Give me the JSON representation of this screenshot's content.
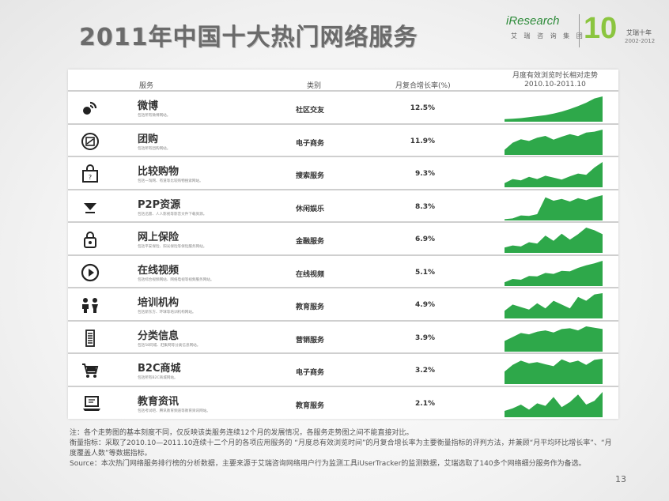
{
  "title": "2011年中国十大热门网络服务",
  "logo": {
    "brand": "iResearch",
    "brand_cn": "艾 瑞 咨 询 集 团",
    "anniversary": "10",
    "anniversary_cn": "艾瑞十年",
    "years": "2002-2012"
  },
  "table": {
    "headers": {
      "service": "服务",
      "category": "类别",
      "rate": "月复合增长率(%)",
      "trend_line1": "月度有效浏览时长相对走势",
      "trend_line2": "2010.10-2011.10"
    },
    "rows": [
      {
        "name": "微博",
        "desc": "包括所有微博网站。",
        "category": "社区交友",
        "rate": "12.5%",
        "icon": "weibo-icon",
        "trend": [
          10,
          12,
          14,
          18,
          22,
          26,
          32,
          40,
          50,
          62,
          75,
          92,
          100
        ]
      },
      {
        "name": "团购",
        "desc": "包括所有团购网站。",
        "category": "电子商务",
        "rate": "11.9%",
        "icon": "tuangou-icon",
        "trend": [
          20,
          48,
          62,
          55,
          68,
          75,
          60,
          72,
          82,
          74,
          88,
          92,
          100
        ]
      },
      {
        "name": "比较购物",
        "desc": "包括一淘网、有道等比较购物搜索网站。",
        "category": "搜索服务",
        "rate": "9.3%",
        "icon": "shopping-bag-icon",
        "trend": [
          15,
          30,
          25,
          38,
          30,
          42,
          35,
          28,
          40,
          50,
          45,
          72,
          92
        ]
      },
      {
        "name": "P2P资源",
        "desc": "包括迅雷、人人影视等影音文件下载资源。",
        "category": "休闲娱乐",
        "rate": "8.3%",
        "icon": "p2p-download-icon",
        "trend": [
          5,
          8,
          20,
          18,
          25,
          92,
          78,
          85,
          75,
          88,
          80,
          92,
          100
        ]
      },
      {
        "name": "网上保险",
        "desc": "包括平安保险、阳光保险等保险服务网站。",
        "category": "金融服务",
        "rate": "6.9%",
        "icon": "insurance-lock-icon",
        "trend": [
          20,
          28,
          24,
          40,
          35,
          65,
          45,
          72,
          50,
          70,
          95,
          85,
          70
        ]
      },
      {
        "name": "在线视频",
        "desc": "包括综合视频网站、网络电视等视频服务网站。",
        "category": "在线视频",
        "rate": "5.1%",
        "icon": "play-icon",
        "trend": [
          15,
          28,
          25,
          40,
          38,
          52,
          48,
          60,
          58,
          72,
          82,
          90,
          100
        ]
      },
      {
        "name": "培训机构",
        "desc": "包括新东方、环球等培训机构网站。",
        "category": "教育服务",
        "rate": "4.9%",
        "icon": "people-icon",
        "trend": [
          30,
          55,
          45,
          35,
          60,
          40,
          70,
          55,
          40,
          85,
          70,
          95,
          100
        ]
      },
      {
        "name": "分类信息",
        "desc": "包括58同城、赶集网等分类信息网站。",
        "category": "营销服务",
        "rate": "3.9%",
        "icon": "list-icon",
        "trend": [
          40,
          55,
          70,
          65,
          75,
          80,
          72,
          85,
          88,
          80,
          95,
          90,
          85
        ]
      },
      {
        "name": "B2C商城",
        "desc": "包括所有B2C商城网站。",
        "category": "电子商务",
        "rate": "3.2%",
        "icon": "cart-icon",
        "trend": [
          45,
          70,
          85,
          75,
          80,
          72,
          65,
          90,
          78,
          85,
          70,
          88,
          92
        ]
      },
      {
        "name": "教育资讯",
        "desc": "包括考试吧、腾讯教育频道等教育资讯网站。",
        "category": "教育服务",
        "rate": "2.1%",
        "icon": "laptop-icon",
        "trend": [
          25,
          35,
          50,
          30,
          55,
          45,
          80,
          40,
          60,
          90,
          50,
          65,
          100
        ]
      }
    ]
  },
  "notes": [
    "注：各个走势图的基本刻度不同，仅反映该类服务连续12个月的发展情况，各服务走势图之间不能直接对比。",
    "衡量指标：采取了2010.10—2011.10连续十二个月的各项应用服务的 “月度总有效浏览时间”的月复合增长率为主要衡量指标的评判方法，并兼顾“月平均环比增长率”、“月度覆盖人数”等数据指标。",
    "Source：本次热门网络服务排行榜的分析数据，主要来源于艾瑞咨询网络用户行为监测工具iUserTracker的监测数据，艾瑞选取了140多个网络细分服务作为备选。"
  ],
  "page_number": "13",
  "colors": {
    "trend_green": "#2ea84a",
    "title_gray": "#6b6b6b",
    "logo_green": "#8bc53f"
  }
}
